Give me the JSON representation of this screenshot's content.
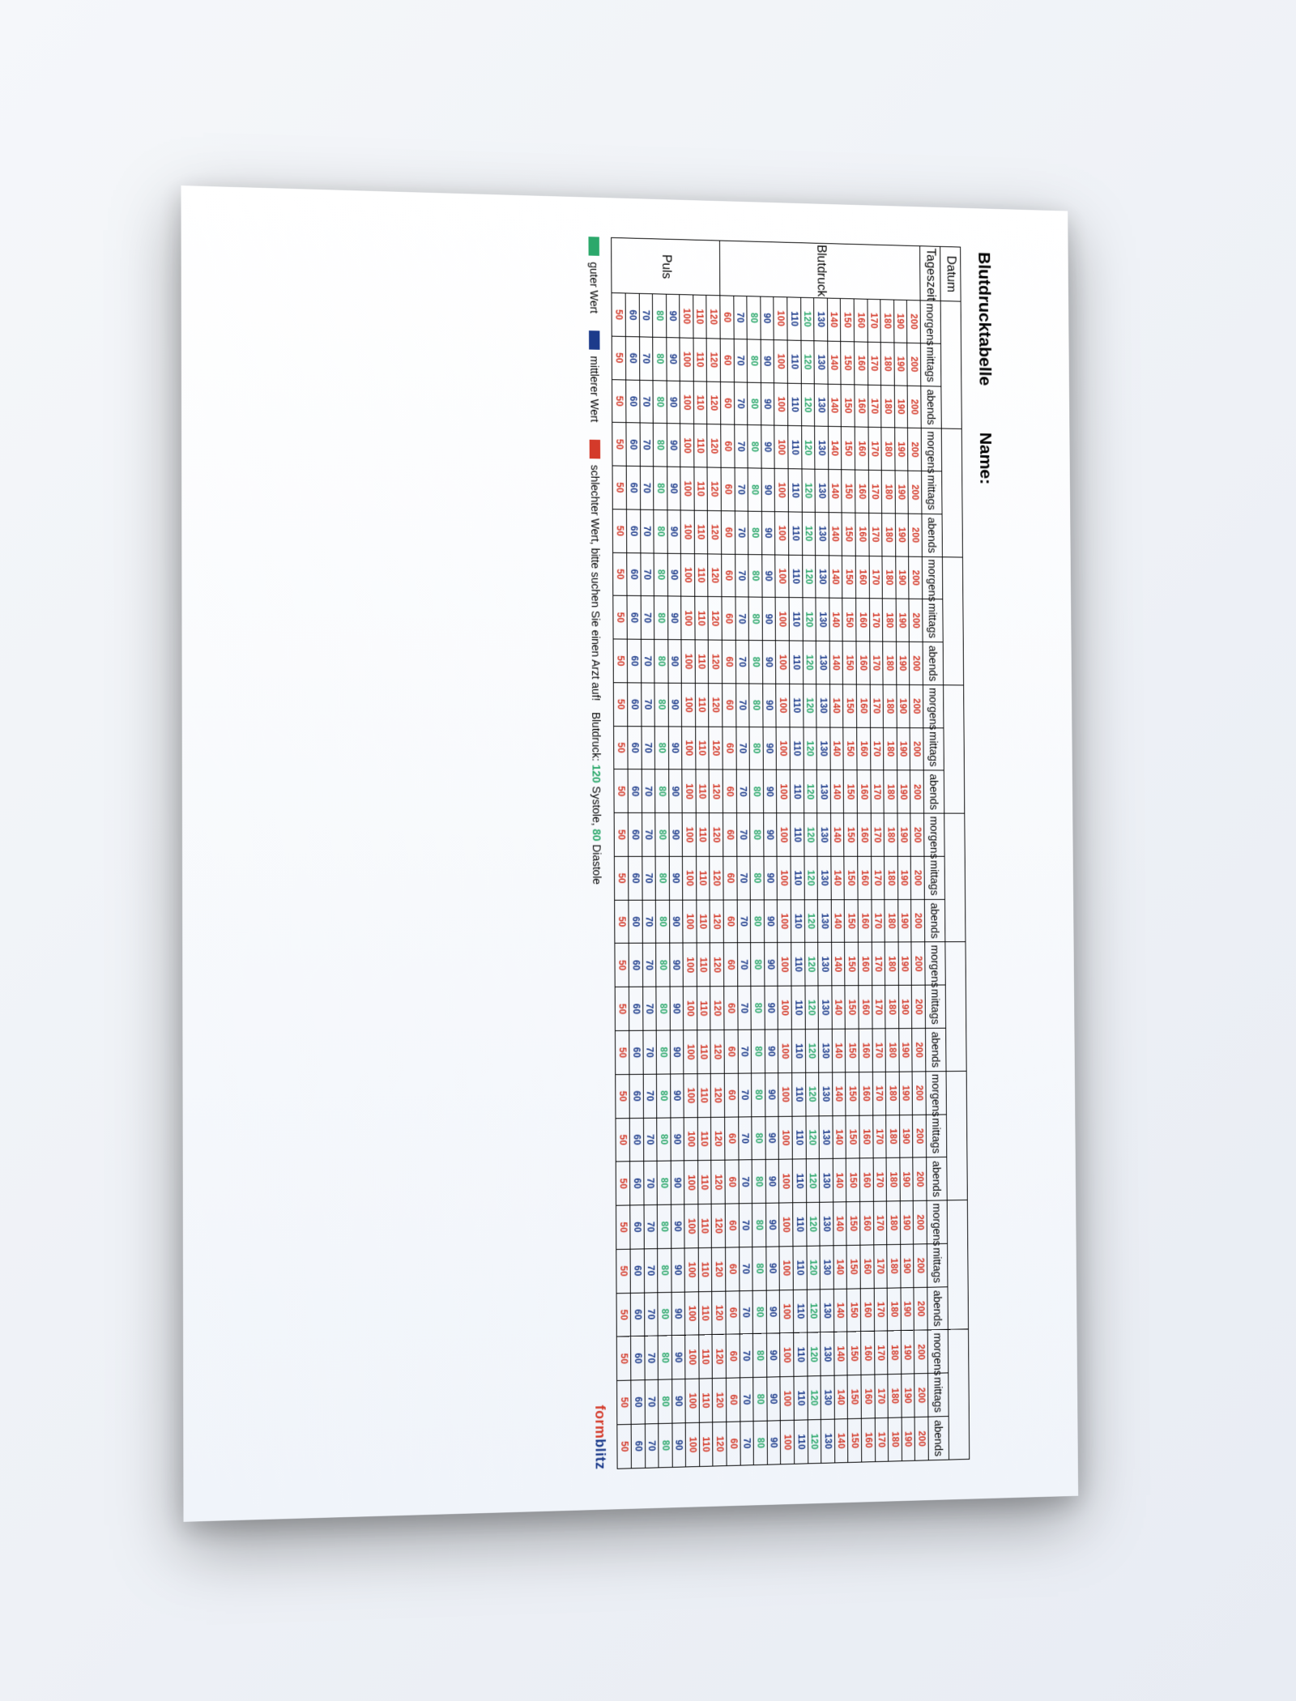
{
  "title": "Blutdrucktabelle",
  "name_label": "Name:",
  "columns": {
    "date": "Datum",
    "time": "Tageszeit",
    "blutdruck": "Blutdruck",
    "puls": "Puls"
  },
  "times": [
    "morgens",
    "mittags",
    "abends"
  ],
  "days": 9,
  "blutdruck_rows": [
    {
      "value": 200,
      "color": "#d43a2a"
    },
    {
      "value": 190,
      "color": "#d43a2a"
    },
    {
      "value": 180,
      "color": "#d43a2a"
    },
    {
      "value": 170,
      "color": "#d43a2a"
    },
    {
      "value": 160,
      "color": "#d43a2a"
    },
    {
      "value": 150,
      "color": "#d43a2a"
    },
    {
      "value": 140,
      "color": "#d43a2a"
    },
    {
      "value": 130,
      "color": "#1c3b8b"
    },
    {
      "value": 120,
      "color": "#2ba86b"
    },
    {
      "value": 110,
      "color": "#1c3b8b"
    },
    {
      "value": 100,
      "color": "#d43a2a"
    },
    {
      "value": 90,
      "color": "#1c3b8b"
    },
    {
      "value": 80,
      "color": "#2ba86b"
    },
    {
      "value": 70,
      "color": "#1c3b8b"
    },
    {
      "value": 60,
      "color": "#d43a2a"
    }
  ],
  "puls_rows": [
    {
      "value": 120,
      "color": "#d43a2a"
    },
    {
      "value": 110,
      "color": "#d43a2a"
    },
    {
      "value": 100,
      "color": "#d43a2a"
    },
    {
      "value": 90,
      "color": "#1c3b8b"
    },
    {
      "value": 80,
      "color": "#2ba86b"
    },
    {
      "value": 70,
      "color": "#1c3b8b"
    },
    {
      "value": 60,
      "color": "#1c3b8b"
    },
    {
      "value": 50,
      "color": "#d43a2a"
    }
  ],
  "legend": {
    "good": {
      "color": "#2ba86b",
      "label": "guter Wert"
    },
    "mid": {
      "color": "#1c3b8b",
      "label": "mittlerer Wert"
    },
    "bad": {
      "color": "#d43a2a",
      "label": "schlechter Wert, bitte suchen Sie einen Arzt auf!"
    },
    "bp_note_prefix": "Blutdruck:",
    "bp_note_sys": "120",
    "bp_note_sys_label": "Systole,",
    "bp_note_dia": "80",
    "bp_note_dia_label": "Diastole"
  },
  "brand": {
    "part1": "form",
    "part2": "blitz"
  },
  "style": {
    "cell_border": "#000000",
    "dashed_border": "#999999",
    "background": "#ffffff",
    "value_fontsize": 12,
    "header_fontsize": 15
  }
}
